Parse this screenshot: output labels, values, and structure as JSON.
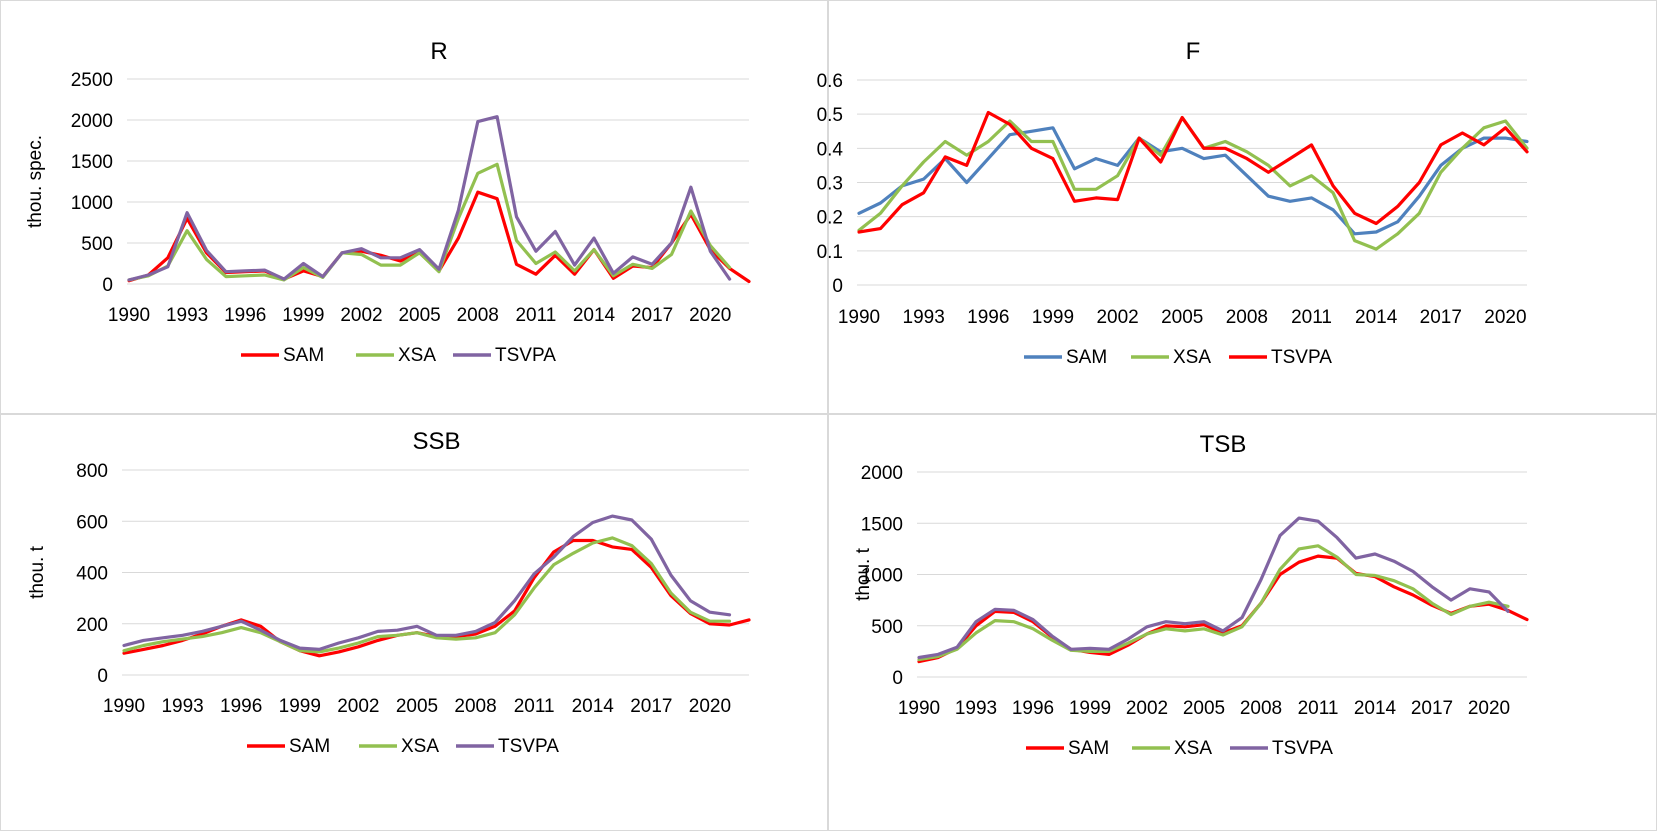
{
  "chart_data": [
    {
      "id": "R",
      "type": "line",
      "title": "R",
      "xlabel": "",
      "ylabel": "thou. spec.",
      "ylim": [
        0,
        2500
      ],
      "yticks": [
        0,
        500,
        1000,
        1500,
        2000,
        2500
      ],
      "xticks": [
        1990,
        1993,
        1996,
        1999,
        2002,
        2005,
        2008,
        2011,
        2014,
        2017,
        2020
      ],
      "xrange": [
        1990,
        2022
      ],
      "legend": "bottom",
      "series": [
        {
          "name": "SAM",
          "color": "#ff0000",
          "x": [
            1990,
            1991,
            1992,
            1993,
            1994,
            1995,
            1996,
            1997,
            1998,
            1999,
            2000,
            2001,
            2002,
            2003,
            2004,
            2005,
            2006,
            2007,
            2008,
            2009,
            2010,
            2011,
            2012,
            2013,
            2014,
            2015,
            2016,
            2017,
            2018,
            2019,
            2020,
            2021,
            2022
          ],
          "y": [
            40,
            110,
            320,
            800,
            380,
            140,
            150,
            160,
            60,
            160,
            90,
            380,
            400,
            350,
            280,
            380,
            160,
            560,
            1120,
            1040,
            240,
            120,
            350,
            120,
            420,
            70,
            220,
            200,
            500,
            850,
            420,
            190,
            30
          ]
        },
        {
          "name": "XSA",
          "color": "#92c050",
          "x": [
            1990,
            1991,
            1992,
            1993,
            1994,
            1995,
            1996,
            1997,
            1998,
            1999,
            2000,
            2001,
            2002,
            2003,
            2004,
            2005,
            2006,
            2007,
            2008,
            2009,
            2010,
            2011,
            2012,
            2013,
            2014,
            2015,
            2016,
            2017,
            2018,
            2019,
            2020,
            2021
          ],
          "y": [
            50,
            100,
            220,
            650,
            300,
            90,
            100,
            110,
            50,
            200,
            80,
            380,
            360,
            230,
            230,
            380,
            150,
            800,
            1350,
            1460,
            530,
            250,
            390,
            160,
            420,
            100,
            240,
            190,
            360,
            890,
            470,
            200
          ]
        },
        {
          "name": "TSVPA",
          "color": "#8064a2",
          "x": [
            1990,
            1991,
            1992,
            1993,
            1994,
            1995,
            1996,
            1997,
            1998,
            1999,
            2000,
            2001,
            2002,
            2003,
            2004,
            2005,
            2006,
            2007,
            2008,
            2009,
            2010,
            2011,
            2012,
            2013,
            2014,
            2015,
            2016,
            2017,
            2018,
            2019,
            2020,
            2021
          ],
          "y": [
            50,
            110,
            210,
            870,
            410,
            150,
            160,
            170,
            60,
            250,
            90,
            380,
            430,
            320,
            320,
            420,
            180,
            900,
            1980,
            2040,
            820,
            400,
            640,
            230,
            560,
            130,
            330,
            240,
            500,
            1180,
            400,
            60
          ]
        }
      ]
    },
    {
      "id": "F",
      "type": "line",
      "title": "F",
      "xlabel": "",
      "ylabel": "",
      "ylim": [
        0,
        0.6
      ],
      "yticks": [
        0,
        0.1,
        0.2,
        0.3,
        0.4,
        0.5,
        0.6
      ],
      "xticks": [
        1990,
        1993,
        1996,
        1999,
        2002,
        2005,
        2008,
        2011,
        2014,
        2017,
        2020
      ],
      "xrange": [
        1990,
        2021
      ],
      "legend": "bottom",
      "series": [
        {
          "name": "SAM",
          "color": "#4f81bd",
          "x": [
            1990,
            1991,
            1992,
            1993,
            1994,
            1995,
            1996,
            1997,
            1998,
            1999,
            2000,
            2001,
            2002,
            2003,
            2004,
            2005,
            2006,
            2007,
            2008,
            2009,
            2010,
            2011,
            2012,
            2013,
            2014,
            2015,
            2016,
            2017,
            2018,
            2019,
            2020,
            2021
          ],
          "y": [
            0.21,
            0.24,
            0.29,
            0.31,
            0.37,
            0.3,
            0.37,
            0.44,
            0.45,
            0.46,
            0.34,
            0.37,
            0.35,
            0.43,
            0.39,
            0.4,
            0.37,
            0.38,
            0.32,
            0.26,
            0.245,
            0.255,
            0.22,
            0.15,
            0.155,
            0.185,
            0.26,
            0.35,
            0.4,
            0.43,
            0.43,
            0.42
          ]
        },
        {
          "name": "XSA",
          "color": "#92c050",
          "x": [
            1990,
            1991,
            1992,
            1993,
            1994,
            1995,
            1996,
            1997,
            1998,
            1999,
            2000,
            2001,
            2002,
            2003,
            2004,
            2005,
            2006,
            2007,
            2008,
            2009,
            2010,
            2011,
            2012,
            2013,
            2014,
            2015,
            2016,
            2017,
            2018,
            2019,
            2020,
            2021
          ],
          "y": [
            0.16,
            0.21,
            0.29,
            0.36,
            0.42,
            0.38,
            0.42,
            0.48,
            0.42,
            0.42,
            0.28,
            0.28,
            0.32,
            0.43,
            0.38,
            0.49,
            0.4,
            0.42,
            0.39,
            0.35,
            0.29,
            0.32,
            0.27,
            0.13,
            0.105,
            0.15,
            0.21,
            0.33,
            0.4,
            0.46,
            0.48,
            0.4
          ]
        },
        {
          "name": "TSVPA",
          "color": "#ff0000",
          "x": [
            1990,
            1991,
            1992,
            1993,
            1994,
            1995,
            1996,
            1997,
            1998,
            1999,
            2000,
            2001,
            2002,
            2003,
            2004,
            2005,
            2006,
            2007,
            2008,
            2009,
            2010,
            2011,
            2012,
            2013,
            2014,
            2015,
            2016,
            2017,
            2018,
            2019,
            2020,
            2021
          ],
          "y": [
            0.155,
            0.165,
            0.235,
            0.27,
            0.375,
            0.35,
            0.505,
            0.47,
            0.4,
            0.37,
            0.245,
            0.255,
            0.25,
            0.43,
            0.36,
            0.49,
            0.4,
            0.4,
            0.37,
            0.33,
            0.37,
            0.41,
            0.29,
            0.21,
            0.18,
            0.23,
            0.3,
            0.41,
            0.445,
            0.41,
            0.46,
            0.39
          ]
        }
      ]
    },
    {
      "id": "SSB",
      "type": "line",
      "title": "SSB",
      "xlabel": "",
      "ylabel": "thou. t",
      "ylim": [
        0,
        800
      ],
      "yticks": [
        0,
        200,
        400,
        600,
        800
      ],
      "xticks": [
        1990,
        1993,
        1996,
        1999,
        2002,
        2005,
        2008,
        2011,
        2014,
        2017,
        2020
      ],
      "xrange": [
        1990,
        2022
      ],
      "legend": "bottom",
      "series": [
        {
          "name": "SAM",
          "color": "#ff0000",
          "x": [
            1990,
            1991,
            1992,
            1993,
            1994,
            1995,
            1996,
            1997,
            1998,
            1999,
            2000,
            2001,
            2002,
            2003,
            2004,
            2005,
            2006,
            2007,
            2008,
            2009,
            2010,
            2011,
            2012,
            2013,
            2014,
            2015,
            2016,
            2017,
            2018,
            2019,
            2020,
            2021,
            2022
          ],
          "y": [
            85,
            100,
            115,
            135,
            160,
            190,
            215,
            190,
            130,
            95,
            75,
            90,
            110,
            135,
            155,
            165,
            150,
            150,
            160,
            190,
            250,
            380,
            480,
            525,
            525,
            500,
            490,
            420,
            310,
            240,
            200,
            195,
            215
          ]
        },
        {
          "name": "XSA",
          "color": "#92c050",
          "x": [
            1990,
            1991,
            1992,
            1993,
            1994,
            1995,
            1996,
            1997,
            1998,
            1999,
            2000,
            2001,
            2002,
            2003,
            2004,
            2005,
            2006,
            2007,
            2008,
            2009,
            2010,
            2011,
            2012,
            2013,
            2014,
            2015,
            2016,
            2017,
            2018,
            2019,
            2020,
            2021
          ],
          "y": [
            95,
            115,
            130,
            140,
            150,
            165,
            185,
            165,
            130,
            95,
            90,
            105,
            125,
            150,
            155,
            165,
            145,
            140,
            145,
            165,
            235,
            340,
            430,
            475,
            515,
            535,
            505,
            435,
            320,
            245,
            210,
            210
          ]
        },
        {
          "name": "TSVPA",
          "color": "#8064a2",
          "x": [
            1990,
            1991,
            1992,
            1993,
            1994,
            1995,
            1996,
            1997,
            1998,
            1999,
            2000,
            2001,
            2002,
            2003,
            2004,
            2005,
            2006,
            2007,
            2008,
            2009,
            2010,
            2011,
            2012,
            2013,
            2014,
            2015,
            2016,
            2017,
            2018,
            2019,
            2020,
            2021
          ],
          "y": [
            115,
            135,
            145,
            155,
            170,
            190,
            210,
            175,
            135,
            105,
            100,
            125,
            145,
            170,
            175,
            190,
            155,
            155,
            170,
            205,
            290,
            395,
            460,
            540,
            595,
            620,
            605,
            530,
            390,
            290,
            245,
            235
          ]
        }
      ]
    },
    {
      "id": "TSB",
      "type": "line",
      "title": "TSB",
      "xlabel": "",
      "ylabel": "thou. t",
      "ylim": [
        0,
        2000
      ],
      "yticks": [
        0,
        500,
        1000,
        1500,
        2000
      ],
      "xticks": [
        1990,
        1993,
        1996,
        1999,
        2002,
        2005,
        2008,
        2011,
        2014,
        2017,
        2020
      ],
      "xrange": [
        1990,
        2022
      ],
      "legend": "bottom",
      "series": [
        {
          "name": "SAM",
          "color": "#ff0000",
          "x": [
            1990,
            1991,
            1992,
            1993,
            1994,
            1995,
            1996,
            1997,
            1998,
            1999,
            2000,
            2001,
            2002,
            2003,
            2004,
            2005,
            2006,
            2007,
            2008,
            2009,
            2010,
            2011,
            2012,
            2013,
            2014,
            2015,
            2016,
            2017,
            2018,
            2019,
            2020,
            2021,
            2022
          ],
          "y": [
            150,
            190,
            280,
            500,
            640,
            630,
            540,
            390,
            270,
            240,
            220,
            310,
            420,
            500,
            490,
            510,
            430,
            500,
            720,
            1000,
            1120,
            1180,
            1160,
            1010,
            980,
            880,
            800,
            700,
            620,
            690,
            710,
            650,
            560
          ]
        },
        {
          "name": "XSA",
          "color": "#92c050",
          "x": [
            1990,
            1991,
            1992,
            1993,
            1994,
            1995,
            1996,
            1997,
            1998,
            1999,
            2000,
            2001,
            2002,
            2003,
            2004,
            2005,
            2006,
            2007,
            2008,
            2009,
            2010,
            2011,
            2012,
            2013,
            2014,
            2015,
            2016,
            2017,
            2018,
            2019,
            2020,
            2021
          ],
          "y": [
            170,
            200,
            270,
            430,
            550,
            540,
            470,
            360,
            260,
            250,
            250,
            330,
            420,
            470,
            450,
            470,
            410,
            490,
            720,
            1050,
            1250,
            1280,
            1170,
            1000,
            990,
            940,
            860,
            720,
            610,
            690,
            730,
            690
          ]
        },
        {
          "name": "TSVPA",
          "color": "#8064a2",
          "x": [
            1990,
            1991,
            1992,
            1993,
            1994,
            1995,
            1996,
            1997,
            1998,
            1999,
            2000,
            2001,
            2002,
            2003,
            2004,
            2005,
            2006,
            2007,
            2008,
            2009,
            2010,
            2011,
            2012,
            2013,
            2014,
            2015,
            2016,
            2017,
            2018,
            2019,
            2020,
            2021
          ],
          "y": [
            190,
            220,
            290,
            540,
            660,
            650,
            560,
            400,
            270,
            280,
            270,
            370,
            490,
            540,
            520,
            540,
            450,
            580,
            950,
            1380,
            1550,
            1520,
            1360,
            1160,
            1200,
            1130,
            1030,
            880,
            750,
            860,
            830,
            640
          ]
        }
      ]
    }
  ]
}
